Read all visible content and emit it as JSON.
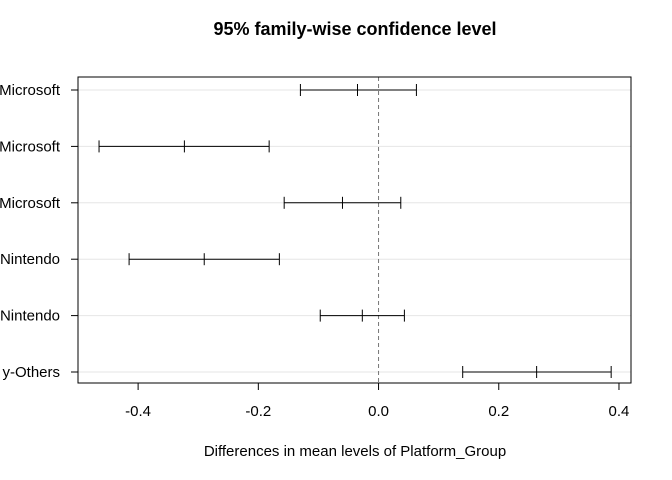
{
  "chart_data": {
    "type": "errorbar",
    "title": "95% family-wise confidence level",
    "xlabel": "Differences in mean levels of Platform_Group",
    "xlim": [
      -0.5,
      0.42
    ],
    "xticks": [
      -0.4,
      -0.2,
      0.0,
      0.2,
      0.4
    ],
    "xtick_labels": [
      "-0.4",
      "-0.2",
      "0.0",
      "0.2",
      "0.4"
    ],
    "reference_line": 0.0,
    "grid": "horizontal",
    "categories": [
      "Microsoft",
      "Microsoft",
      "Microsoft",
      "Nintendo",
      "Nintendo",
      "y-Others"
    ],
    "series": [
      {
        "lower": -0.13,
        "estimate": -0.035,
        "upper": 0.063
      },
      {
        "lower": -0.465,
        "estimate": -0.323,
        "upper": -0.182
      },
      {
        "lower": -0.157,
        "estimate": -0.06,
        "upper": 0.037
      },
      {
        "lower": -0.415,
        "estimate": -0.29,
        "upper": -0.165
      },
      {
        "lower": -0.097,
        "estimate": -0.027,
        "upper": 0.043
      },
      {
        "lower": 0.14,
        "estimate": 0.263,
        "upper": 0.387
      }
    ]
  }
}
